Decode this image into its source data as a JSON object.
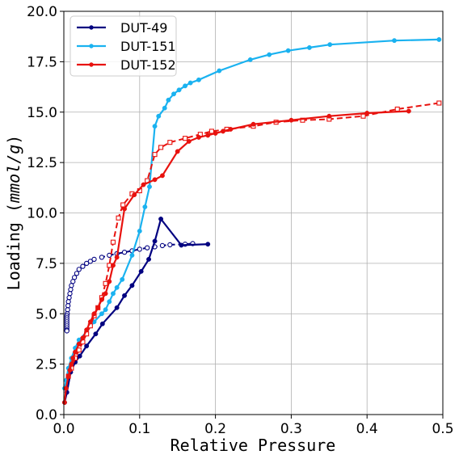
{
  "chart_data": {
    "type": "line",
    "xlabel": "Relative Pressure",
    "ylabel_prefix": "Loading (",
    "ylabel_unit": "mmol/g",
    "ylabel_suffix": ")",
    "xlim": [
      0.0,
      0.5
    ],
    "ylim": [
      0.0,
      20.0
    ],
    "xticks": [
      0.0,
      0.1,
      0.2,
      0.3,
      0.4,
      0.5
    ],
    "xtick_labels": [
      "0.0",
      "0.1",
      "0.2",
      "0.3",
      "0.4",
      "0.5"
    ],
    "yticks": [
      0.0,
      2.5,
      5.0,
      7.5,
      10.0,
      12.5,
      15.0,
      17.5,
      20.0
    ],
    "ytick_labels": [
      "0.0",
      "2.5",
      "5.0",
      "7.5",
      "10.0",
      "12.5",
      "15.0",
      "17.5",
      "20.0"
    ],
    "grid": true,
    "legend_position": "top-left",
    "series": [
      {
        "name": "DUT-49",
        "color": "#000080",
        "adsorption": {
          "x": [
            0.001,
            0.004,
            0.009,
            0.015,
            0.021,
            0.03,
            0.042,
            0.051,
            0.07,
            0.08,
            0.09,
            0.102,
            0.112,
            0.12,
            0.128,
            0.155,
            0.19
          ],
          "y": [
            0.6,
            1.1,
            2.1,
            2.6,
            2.9,
            3.4,
            4.0,
            4.5,
            5.3,
            5.9,
            6.4,
            7.1,
            7.7,
            8.6,
            9.7,
            8.4,
            8.45
          ]
        },
        "desorption": {
          "x": [
            0.17,
            0.16,
            0.14,
            0.13,
            0.12,
            0.11,
            0.1,
            0.09,
            0.08,
            0.07,
            0.06,
            0.05,
            0.04,
            0.035,
            0.03,
            0.025,
            0.02,
            0.017,
            0.014,
            0.012,
            0.01,
            0.009,
            0.008,
            0.007,
            0.006,
            0.0055,
            0.005,
            0.0045,
            0.004,
            0.004,
            0.004,
            0.004,
            0.004,
            0.004,
            0.004,
            0.004,
            0.004
          ],
          "y": [
            8.48,
            8.45,
            8.42,
            8.38,
            8.32,
            8.27,
            8.2,
            8.12,
            8.05,
            7.98,
            7.9,
            7.8,
            7.7,
            7.6,
            7.5,
            7.35,
            7.2,
            7.0,
            6.8,
            6.6,
            6.4,
            6.2,
            6.0,
            5.8,
            5.6,
            5.4,
            5.2,
            5.0,
            4.9,
            4.8,
            4.7,
            4.6,
            4.5,
            4.4,
            4.3,
            4.2,
            4.15
          ]
        }
      },
      {
        "name": "DUT-151",
        "color": "#1ab2f0",
        "adsorption": {
          "x": [
            0.001,
            0.003,
            0.006,
            0.01,
            0.015,
            0.02,
            0.03,
            0.04,
            0.05,
            0.055,
            0.06,
            0.065,
            0.07,
            0.077,
            0.09,
            0.1,
            0.107,
            0.113,
            0.12,
            0.125,
            0.133,
            0.138,
            0.145,
            0.152,
            0.16,
            0.167,
            0.178,
            0.205,
            0.246,
            0.271,
            0.296,
            0.324,
            0.351,
            0.436,
            0.495
          ],
          "y": [
            1.3,
            1.7,
            2.3,
            2.8,
            3.3,
            3.7,
            4.1,
            4.6,
            5.0,
            5.2,
            5.6,
            6.0,
            6.3,
            6.7,
            7.9,
            9.1,
            10.3,
            11.3,
            14.3,
            14.8,
            15.2,
            15.6,
            15.9,
            16.1,
            16.3,
            16.45,
            16.6,
            17.05,
            17.6,
            17.85,
            18.05,
            18.2,
            18.35,
            18.55,
            18.6
          ]
        }
      },
      {
        "name": "DUT-152",
        "color": "#e8120e",
        "adsorption": {
          "x": [
            0.001,
            0.003,
            0.006,
            0.008,
            0.01,
            0.012,
            0.015,
            0.02,
            0.025,
            0.03,
            0.035,
            0.04,
            0.045,
            0.05,
            0.055,
            0.06,
            0.065,
            0.07,
            0.08,
            0.093,
            0.105,
            0.12,
            0.13,
            0.15,
            0.165,
            0.178,
            0.19,
            0.2,
            0.21,
            0.22,
            0.25,
            0.3,
            0.35,
            0.4,
            0.455
          ],
          "y": [
            0.6,
            1.3,
            1.9,
            2.2,
            2.5,
            2.8,
            3.1,
            3.5,
            3.8,
            4.2,
            4.6,
            5.0,
            5.3,
            5.7,
            6.0,
            6.6,
            7.4,
            7.8,
            10.2,
            10.9,
            11.4,
            11.65,
            11.85,
            13.05,
            13.55,
            13.75,
            13.85,
            13.95,
            14.05,
            14.15,
            14.4,
            14.6,
            14.8,
            14.95,
            15.05
          ]
        },
        "desorption": {
          "x": [
            0.495,
            0.44,
            0.395,
            0.35,
            0.315,
            0.28,
            0.25,
            0.215,
            0.195,
            0.18,
            0.16,
            0.14,
            0.128,
            0.12,
            0.11,
            0.1,
            0.09,
            0.078,
            0.072,
            0.065,
            0.06,
            0.055,
            0.05,
            0.045,
            0.04,
            0.035,
            0.03,
            0.025,
            0.02,
            0.015,
            0.01,
            0.006
          ],
          "y": [
            15.45,
            15.15,
            14.8,
            14.65,
            14.6,
            14.5,
            14.3,
            14.15,
            14.05,
            13.9,
            13.7,
            13.5,
            13.25,
            12.9,
            11.6,
            11.1,
            10.95,
            10.4,
            9.75,
            8.55,
            7.4,
            6.5,
            5.8,
            5.3,
            4.9,
            4.4,
            4.0,
            3.6,
            3.2,
            2.8,
            2.3,
            1.9
          ]
        }
      }
    ]
  }
}
